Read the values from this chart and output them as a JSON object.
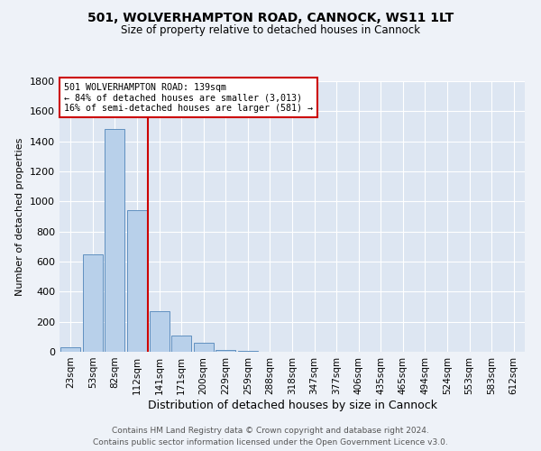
{
  "title1": "501, WOLVERHAMPTON ROAD, CANNOCK, WS11 1LT",
  "title2": "Size of property relative to detached houses in Cannock",
  "xlabel": "Distribution of detached houses by size in Cannock",
  "ylabel": "Number of detached properties",
  "categories": [
    "23sqm",
    "53sqm",
    "82sqm",
    "112sqm",
    "141sqm",
    "171sqm",
    "200sqm",
    "229sqm",
    "259sqm",
    "288sqm",
    "318sqm",
    "347sqm",
    "377sqm",
    "406sqm",
    "435sqm",
    "465sqm",
    "494sqm",
    "524sqm",
    "553sqm",
    "583sqm",
    "612sqm"
  ],
  "values": [
    30,
    650,
    1480,
    940,
    270,
    110,
    60,
    15,
    5,
    2,
    0,
    0,
    0,
    0,
    0,
    0,
    0,
    0,
    0,
    0,
    0
  ],
  "bar_color": "#b8d0ea",
  "bar_edge_color": "#6090c0",
  "vline_color": "#cc0000",
  "ylim": [
    0,
    1800
  ],
  "yticks": [
    0,
    200,
    400,
    600,
    800,
    1000,
    1200,
    1400,
    1600,
    1800
  ],
  "annotation_text": "501 WOLVERHAMPTON ROAD: 139sqm\n← 84% of detached houses are smaller (3,013)\n16% of semi-detached houses are larger (581) →",
  "annotation_box_color": "#cc0000",
  "footer1": "Contains HM Land Registry data © Crown copyright and database right 2024.",
  "footer2": "Contains public sector information licensed under the Open Government Licence v3.0.",
  "background_color": "#eef2f8",
  "plot_bg_color": "#dde6f2"
}
